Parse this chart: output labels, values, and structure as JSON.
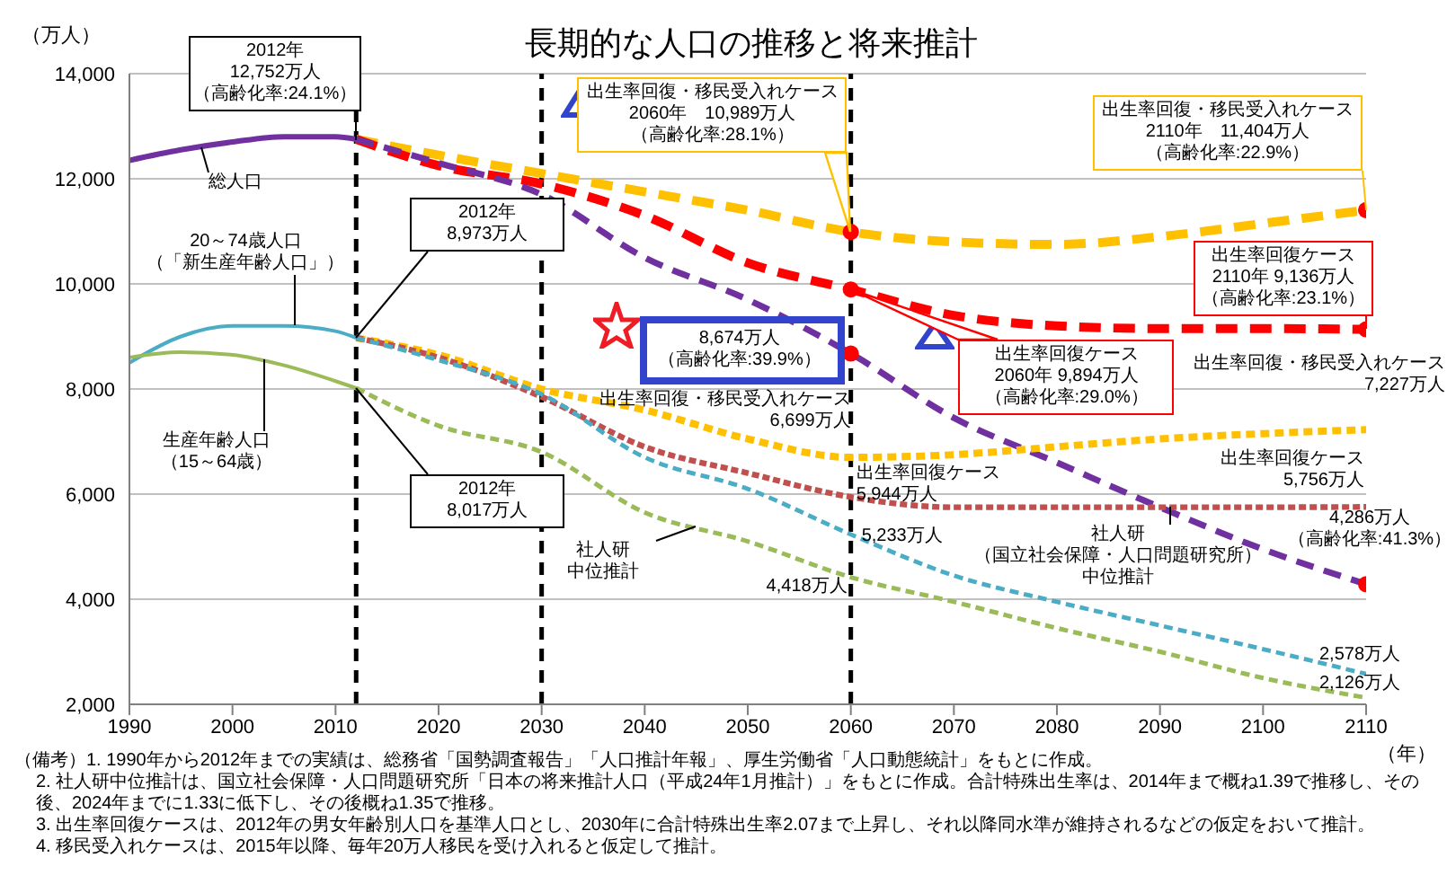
{
  "chart_data": {
    "type": "line",
    "title": "長期的な人口の推移と将来推計",
    "xlabel": "（年）",
    "ylabel": "（万人）",
    "xlim": [
      1990,
      2110
    ],
    "xticks": [
      1990,
      2000,
      2010,
      2020,
      2030,
      2040,
      2050,
      2060,
      2070,
      2080,
      2090,
      2100,
      2110
    ],
    "ylim": [
      2000,
      14000
    ],
    "yticks": [
      {
        "value": 2000,
        "label": "2,000"
      },
      {
        "value": 4000,
        "label": "4,000"
      },
      {
        "value": 6000,
        "label": "6,000"
      },
      {
        "value": 8000,
        "label": "8,000"
      },
      {
        "value": 10000,
        "label": "10,000"
      },
      {
        "value": 12000,
        "label": "12,000"
      },
      {
        "value": 14000,
        "label": "14,000"
      }
    ],
    "grid": "y",
    "legend": false,
    "series": [
      {
        "line_style": "solid",
        "color": "#7030a0",
        "x": [
          1990,
          1995,
          2000,
          2005,
          2010,
          2012
        ],
        "values": [
          12350,
          12550,
          12700,
          12800,
          12800,
          12752
        ]
      },
      {
        "line_style": "solid",
        "color": "#4bacc6",
        "x": [
          1990,
          1995,
          2000,
          2005,
          2010,
          2012
        ],
        "values": [
          8500,
          9000,
          9200,
          9200,
          9100,
          8973
        ]
      },
      {
        "line_style": "solid",
        "color": "#9bbb59",
        "x": [
          1990,
          1995,
          2000,
          2005,
          2010,
          2012
        ],
        "values": [
          8600,
          8700,
          8650,
          8450,
          8150,
          8017
        ]
      },
      {
        "line_style": "dashed",
        "color": "#ffc000",
        "x": [
          2012,
          2020,
          2030,
          2040,
          2050,
          2060,
          2070,
          2080,
          2090,
          2100,
          2110
        ],
        "values": [
          12752,
          12450,
          12100,
          11750,
          11400,
          10989,
          10800,
          10750,
          10900,
          11150,
          11404
        ]
      },
      {
        "line_style": "dashed",
        "color": "#ff0000",
        "x": [
          2012,
          2020,
          2030,
          2040,
          2050,
          2060,
          2070,
          2080,
          2090,
          2100,
          2110
        ],
        "values": [
          12752,
          12250,
          11900,
          11300,
          10400,
          9894,
          9400,
          9200,
          9150,
          9150,
          9136
        ]
      },
      {
        "line_style": "dashed",
        "color": "#7030a0",
        "x": [
          2012,
          2020,
          2030,
          2040,
          2050,
          2060,
          2070,
          2080,
          2090,
          2100,
          2110
        ],
        "values": [
          12752,
          12300,
          11700,
          10500,
          9700,
          8674,
          7450,
          6600,
          5750,
          4950,
          4286
        ]
      },
      {
        "line_style": "dashed",
        "color": "#ffc000",
        "x": [
          2012,
          2020,
          2030,
          2040,
          2050,
          2060,
          2070,
          2080,
          2090,
          2100,
          2110
        ],
        "values": [
          8973,
          8650,
          8000,
          7600,
          7050,
          6699,
          6750,
          6900,
          7050,
          7150,
          7227
        ]
      },
      {
        "line_style": "dashed",
        "color": "#c0504d",
        "x": [
          2012,
          2020,
          2030,
          2040,
          2050,
          2060,
          2070,
          2080,
          2090,
          2100,
          2110
        ],
        "values": [
          8973,
          8600,
          7850,
          6900,
          6400,
          5944,
          5750,
          5750,
          5750,
          5750,
          5756
        ]
      },
      {
        "line_style": "dashed",
        "color": "#4bacc6",
        "x": [
          2012,
          2020,
          2030,
          2040,
          2050,
          2060,
          2070,
          2080,
          2090,
          2100,
          2110
        ],
        "values": [
          8973,
          8550,
          7900,
          6700,
          6100,
          5233,
          4450,
          3950,
          3500,
          3050,
          2578
        ]
      },
      {
        "line_style": "dashed",
        "color": "#9bbb59",
        "x": [
          2012,
          2020,
          2030,
          2040,
          2050,
          2060,
          2070,
          2080,
          2090,
          2100,
          2110
        ],
        "values": [
          8017,
          7300,
          6800,
          5650,
          5100,
          4418,
          3950,
          3450,
          3000,
          2500,
          2126
        ]
      },
      {
        "type": "scatter",
        "marker": "circle",
        "color": "#ff0000",
        "x": [
          2060,
          2060,
          2060,
          2110,
          2110,
          2110
        ],
        "values": [
          10989,
          9894,
          8674,
          11404,
          9136,
          4286
        ]
      }
    ],
    "ref_lines": [
      {
        "axis": "x",
        "value": 2012,
        "color": "#000000",
        "line_style": "dashed"
      },
      {
        "axis": "x",
        "value": 2030,
        "color": "#000000",
        "line_style": "dashed"
      },
      {
        "axis": "x",
        "value": 2060,
        "color": "#000000",
        "line_style": "dashed"
      }
    ],
    "annotations": [
      {
        "text": "2012年12,752万人（高齢化率:24.1%）",
        "x": 2012,
        "y": 12752
      },
      {
        "text": "総人口",
        "x": 1997,
        "y": 12600
      },
      {
        "text": "20～74歳人口（「新生産年齢人口」）",
        "x": 2006,
        "y": 9200
      },
      {
        "text": "2012年\n8,973万人",
        "x": 2012,
        "y": 8973
      },
      {
        "text": "生産年齢人口（15～64歳）",
        "x": 2003,
        "y": 8550
      },
      {
        "text": "2012年\n8,017万人",
        "x": 2012,
        "y": 8017
      },
      {
        "text": "出生率回復・移民受入れケース2060年　10,989万人（高齢化率:28.1%）",
        "x": 2060,
        "y": 10989
      },
      {
        "text": "出生率回復・移民受入れケース2110年　11,404万人（高齢化率:22.9%）",
        "x": 2110,
        "y": 11404
      },
      {
        "text": "出生率回復ケース2110年 9,136万人（高齢化率:23.1%）",
        "x": 2110,
        "y": 9136
      },
      {
        "text": "出生率回復ケース2060年 9,894万人（高齢化率:29.0%）",
        "x": 2060,
        "y": 9894
      },
      {
        "text": "8,674万人（高齢化率:39.9%）",
        "x": 2060,
        "y": 8674
      },
      {
        "text": "出生率回復・移民受入れケース\n6,699万人",
        "x": 2060,
        "y": 6699
      },
      {
        "text": "出生率回復ケース\n5,944万人",
        "x": 2060,
        "y": 5944
      },
      {
        "text": "5,233万人",
        "x": 2060,
        "y": 5233
      },
      {
        "text": "4,418万人",
        "x": 2060,
        "y": 4418
      },
      {
        "text": "社人研中位推計",
        "x": 2045,
        "y": 5400
      },
      {
        "text": "出生率回復・移民受入れケース\n7,227万人",
        "x": 2110,
        "y": 7227
      },
      {
        "text": "出生率回復ケース\n5,756万人",
        "x": 2110,
        "y": 5756
      },
      {
        "text": "4,286万人（高齢化率:41.3%）",
        "x": 2110,
        "y": 4286
      },
      {
        "text": "社人研（国立社会保障・人口問題研究所）中位推計",
        "x": 2091,
        "y": 5750
      },
      {
        "text": "2,578万人",
        "x": 2110,
        "y": 2578
      },
      {
        "text": "2,126万人",
        "x": 2110,
        "y": 2126
      },
      "（備考）1. 1990年から2012年までの実績は、総務省「国勢調査報告」「人口推計年報」、厚生労働省「人口動態統計」をもとに作成。",
      "2. 社人研中位推計は、国立社会保障・人口問題研究所「日本の将来推計人口（平成24年1月推計）」をもとに作成。合計特殊出生率は、2014年まで概ね1.39で推移し、その後、2024年までに1.33に低下し、その後概ね1.35で推移。",
      "3. 出生率回復ケースは、2012年の男女年齢別人口を基準人口とし、2030年に合計特殊出生率2.07まで上昇し、それ以降同水準が維持されるなどの仮定をおいて推計。",
      "4. 移民受入れケースは、2015年以降、毎年20万人移民を受け入れると仮定して推計。"
    ]
  }
}
